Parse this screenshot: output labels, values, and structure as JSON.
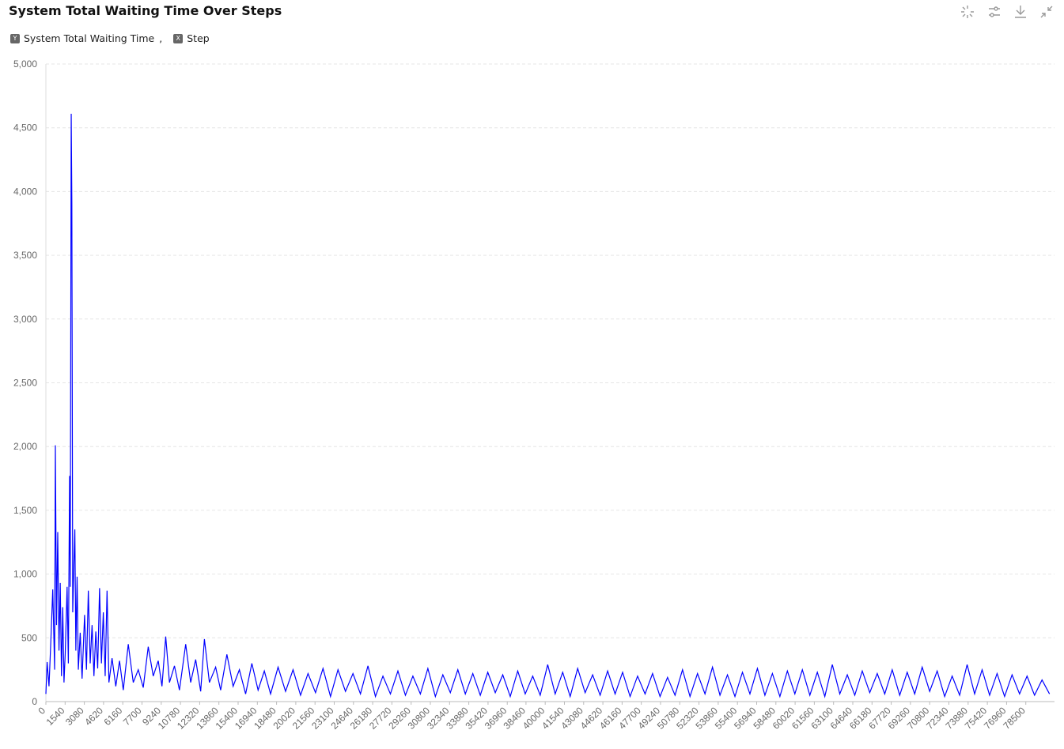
{
  "chart_data": {
    "type": "line",
    "title": "System Total Waiting Time Over Steps",
    "y_badge": "Y",
    "ylabel": "System Total Waiting Time",
    "separator": ",",
    "x_badge": "X",
    "xlabel": "Step",
    "color": "#0000ff",
    "xlim": [
      0,
      80800
    ],
    "xticks": [
      0,
      1540,
      3080,
      4620,
      6160,
      7700,
      9240,
      10780,
      12320,
      13860,
      15400,
      16940,
      18480,
      20020,
      21560,
      23100,
      24640,
      26180,
      27720,
      29260,
      30800,
      32340,
      33880,
      35420,
      36960,
      38460,
      40000,
      41540,
      43080,
      44620,
      46160,
      47700,
      49240,
      50780,
      52320,
      53860,
      55400,
      56940,
      58480,
      60020,
      61560,
      63100,
      64640,
      66180,
      67720,
      69260,
      70800,
      72340,
      73880,
      75420,
      76960,
      78500
    ],
    "ylim": [
      0,
      5000
    ],
    "yticks": [
      0,
      500,
      {
        "value": 1000,
        "label": "1,000"
      },
      {
        "value": 1500,
        "label": "1,500"
      },
      {
        "value": 2000,
        "label": "2,000"
      },
      {
        "value": 2500,
        "label": "2,500"
      },
      {
        "value": 3000,
        "label": "3,000"
      },
      {
        "value": 3500,
        "label": "3,500"
      },
      {
        "value": 4000,
        "label": "4,000"
      },
      {
        "value": 4500,
        "label": "4,500"
      },
      {
        "value": 5000,
        "label": "5,000"
      }
    ],
    "grid": true,
    "x": [
      0,
      100,
      250,
      400,
      550,
      700,
      760,
      850,
      950,
      1050,
      1150,
      1250,
      1350,
      1450,
      1550,
      1700,
      1800,
      1900,
      1950,
      2030,
      2080,
      2150,
      2250,
      2320,
      2400,
      2500,
      2600,
      2750,
      2900,
      3100,
      3250,
      3400,
      3550,
      3700,
      3850,
      4000,
      4150,
      4300,
      4450,
      4600,
      4750,
      4900,
      5050,
      5300,
      5600,
      5900,
      6200,
      6600,
      7000,
      7400,
      7800,
      8200,
      8600,
      9000,
      9300,
      9600,
      9900,
      10300,
      10700,
      11200,
      11600,
      12000,
      12400,
      12700,
      13100,
      13600,
      14000,
      14500,
      15000,
      15500,
      16000,
      16500,
      17000,
      17500,
      18000,
      18600,
      19200,
      19800,
      20400,
      21000,
      21600,
      22200,
      22800,
      23400,
      24000,
      24600,
      25200,
      25800,
      26400,
      27000,
      27600,
      28200,
      28800,
      29400,
      30000,
      30600,
      31200,
      31800,
      32400,
      33000,
      33600,
      34200,
      34800,
      35400,
      36000,
      36600,
      37200,
      37800,
      38400,
      39000,
      39600,
      40200,
      40800,
      41400,
      42000,
      42600,
      43200,
      43800,
      44400,
      45000,
      45600,
      46200,
      46800,
      47400,
      48000,
      48600,
      49200,
      49800,
      50400,
      51000,
      51600,
      52200,
      52800,
      53400,
      54000,
      54600,
      55200,
      55800,
      56400,
      57000,
      57600,
      58200,
      58800,
      59400,
      60000,
      60600,
      61200,
      61800,
      62400,
      63000,
      63600,
      64200,
      64800,
      65400,
      66000,
      66600,
      67200,
      67800,
      68400,
      69000,
      69600,
      70200,
      70800,
      71400,
      72000,
      72600,
      73200,
      73800,
      74400,
      75000,
      75600,
      76200,
      76800,
      77400,
      78000,
      78600,
      79200,
      79800,
      80400
    ],
    "values": [
      60,
      310,
      120,
      480,
      880,
      250,
      2010,
      600,
      1330,
      400,
      930,
      200,
      740,
      150,
      380,
      900,
      300,
      1770,
      900,
      4610,
      3910,
      700,
      1100,
      1350,
      400,
      980,
      250,
      540,
      180,
      680,
      250,
      870,
      300,
      600,
      200,
      550,
      260,
      890,
      300,
      700,
      200,
      870,
      150,
      340,
      120,
      320,
      90,
      450,
      150,
      250,
      110,
      430,
      200,
      320,
      120,
      510,
      150,
      280,
      90,
      450,
      150,
      330,
      80,
      490,
      150,
      270,
      90,
      370,
      120,
      250,
      60,
      300,
      90,
      240,
      60,
      270,
      80,
      250,
      50,
      220,
      70,
      260,
      40,
      250,
      80,
      220,
      60,
      280,
      40,
      200,
      60,
      240,
      50,
      200,
      60,
      260,
      40,
      210,
      70,
      250,
      60,
      220,
      50,
      230,
      70,
      210,
      40,
      240,
      60,
      200,
      50,
      290,
      60,
      230,
      40,
      260,
      70,
      210,
      50,
      240,
      60,
      230,
      40,
      200,
      60,
      220,
      40,
      190,
      50,
      250,
      40,
      220,
      60,
      270,
      50,
      210,
      40,
      230,
      60,
      260,
      50,
      220,
      40,
      240,
      60,
      250,
      50,
      230,
      40,
      290,
      60,
      210,
      50,
      240,
      70,
      220,
      60,
      250,
      50,
      230,
      60,
      270,
      80,
      240,
      40,
      200,
      50,
      290,
      60,
      250,
      50,
      220,
      40,
      210,
      60,
      200,
      50,
      170,
      60
    ]
  }
}
